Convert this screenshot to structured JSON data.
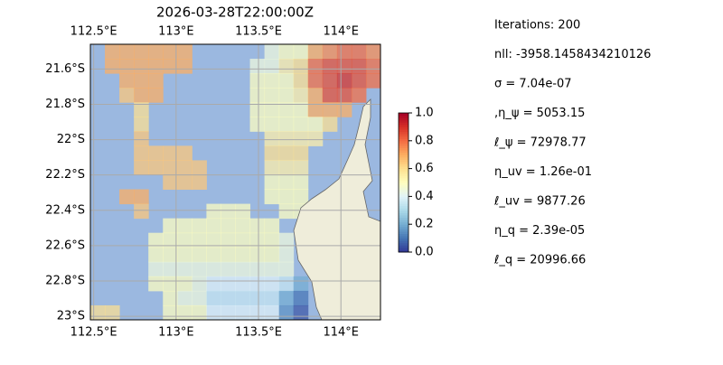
{
  "chart_data": {
    "type": "heatmap",
    "title": "2026-03-28T22:00:00Z",
    "xlim": [
      112.48,
      114.24
    ],
    "ylim": [
      -23.02,
      -21.46
    ],
    "xticks": [
      {
        "value": 112.5,
        "label": "112.5°E"
      },
      {
        "value": 113,
        "label": "113°E"
      },
      {
        "value": 113.5,
        "label": "113.5°E"
      },
      {
        "value": 114,
        "label": "114°E"
      }
    ],
    "yticks": [
      {
        "value": -21.6,
        "label": "21.6°S"
      },
      {
        "value": -21.8,
        "label": "21.8°S"
      },
      {
        "value": -22,
        "label": "22°S"
      },
      {
        "value": -22.2,
        "label": "22.2°S"
      },
      {
        "value": -22.4,
        "label": "22.4°S"
      },
      {
        "value": -22.6,
        "label": "22.6°S"
      },
      {
        "value": -22.8,
        "label": "22.8°S"
      },
      {
        "value": -23,
        "label": "23°S"
      }
    ],
    "grid": true,
    "colorbar": {
      "lim": [
        0,
        1
      ],
      "ticks": [
        {
          "value": 0,
          "label": "0.0"
        },
        {
          "value": 0.2,
          "label": "0.2"
        },
        {
          "value": 0.4,
          "label": "0.4"
        },
        {
          "value": 0.6,
          "label": "0.6"
        },
        {
          "value": 0.8,
          "label": "0.8"
        },
        {
          "value": 1,
          "label": "1.0"
        }
      ]
    },
    "colormap": [
      "#313695",
      "#4575b4",
      "#74add1",
      "#abd9e9",
      "#e0f3f8",
      "#ffffbf",
      "#fee090",
      "#fdae61",
      "#f46d43",
      "#d73027",
      "#a50026"
    ],
    "grid_values": [
      [
        null,
        0.7,
        0.7,
        0.7,
        0.7,
        0.7,
        0.7,
        null,
        null,
        null,
        null,
        null,
        0.45,
        0.5,
        0.5,
        0.7,
        0.75,
        0.8,
        0.8,
        0.75
      ],
      [
        null,
        0.7,
        0.7,
        0.7,
        0.7,
        0.7,
        0.7,
        null,
        null,
        null,
        null,
        0.45,
        0.45,
        0.55,
        0.6,
        0.8,
        0.85,
        0.85,
        0.85,
        0.8
      ],
      [
        null,
        null,
        0.7,
        0.7,
        0.7,
        null,
        null,
        null,
        null,
        null,
        null,
        0.5,
        0.5,
        0.5,
        0.6,
        0.8,
        0.85,
        0.9,
        0.85,
        0.8
      ],
      [
        null,
        null,
        0.65,
        0.7,
        0.7,
        null,
        null,
        null,
        null,
        null,
        null,
        0.5,
        0.5,
        0.5,
        0.55,
        0.7,
        0.85,
        0.85,
        0.8,
        null
      ],
      [
        null,
        null,
        null,
        0.6,
        null,
        null,
        null,
        null,
        null,
        null,
        null,
        0.5,
        0.5,
        0.5,
        0.5,
        0.7,
        0.7,
        0.7,
        null,
        null
      ],
      [
        null,
        null,
        null,
        0.6,
        null,
        null,
        null,
        null,
        null,
        null,
        null,
        0.5,
        0.5,
        0.5,
        0.5,
        0.5,
        0.6,
        null,
        null,
        null
      ],
      [
        null,
        null,
        null,
        0.65,
        null,
        null,
        null,
        null,
        null,
        null,
        null,
        null,
        0.55,
        0.55,
        0.55,
        0.55,
        null,
        null,
        null,
        null
      ],
      [
        null,
        null,
        null,
        0.65,
        0.65,
        0.65,
        0.65,
        null,
        null,
        null,
        null,
        null,
        0.6,
        0.6,
        0.6,
        null,
        null,
        null,
        null,
        null
      ],
      [
        null,
        null,
        null,
        0.65,
        0.65,
        0.65,
        0.65,
        0.65,
        null,
        null,
        null,
        null,
        0.55,
        0.55,
        0.55,
        null,
        null,
        null,
        null,
        null
      ],
      [
        null,
        null,
        null,
        null,
        null,
        0.65,
        0.65,
        0.65,
        null,
        null,
        null,
        null,
        0.5,
        0.5,
        0.5,
        null,
        null,
        null,
        null,
        null
      ],
      [
        null,
        null,
        0.7,
        0.7,
        null,
        null,
        null,
        null,
        null,
        null,
        null,
        null,
        0.5,
        0.5,
        0.5,
        null,
        null,
        null,
        null,
        null
      ],
      [
        null,
        null,
        null,
        0.65,
        null,
        null,
        null,
        null,
        0.5,
        0.5,
        0.5,
        null,
        null,
        0.5,
        0.5,
        null,
        null,
        null,
        null,
        null
      ],
      [
        null,
        null,
        null,
        null,
        null,
        0.5,
        0.5,
        0.5,
        0.5,
        0.5,
        0.5,
        0.5,
        0.5,
        null,
        null,
        null,
        null,
        null,
        null,
        null
      ],
      [
        null,
        null,
        null,
        null,
        0.5,
        0.5,
        0.5,
        0.5,
        0.5,
        0.5,
        0.5,
        0.5,
        0.5,
        0.45,
        null,
        null,
        null,
        null,
        null,
        null
      ],
      [
        null,
        null,
        null,
        null,
        0.5,
        0.5,
        0.5,
        0.5,
        0.5,
        0.5,
        0.5,
        0.5,
        0.5,
        0.45,
        null,
        null,
        null,
        null,
        null,
        null
      ],
      [
        null,
        null,
        null,
        null,
        0.45,
        0.45,
        0.45,
        0.45,
        0.45,
        0.45,
        0.45,
        0.45,
        0.45,
        0.45,
        null,
        null,
        null,
        null,
        null,
        null
      ],
      [
        null,
        null,
        null,
        null,
        0.5,
        0.5,
        0.5,
        0.45,
        0.4,
        0.4,
        0.4,
        0.4,
        0.4,
        0.35,
        0.2,
        null,
        null,
        null,
        null,
        null
      ],
      [
        null,
        null,
        null,
        null,
        null,
        0.5,
        0.45,
        0.45,
        0.35,
        0.35,
        0.35,
        0.35,
        0.35,
        0.2,
        0.1,
        null,
        null,
        null,
        null,
        null
      ],
      [
        0.6,
        0.6,
        null,
        null,
        null,
        0.5,
        0.5,
        0.5,
        0.4,
        0.4,
        0.4,
        0.4,
        0.4,
        0.15,
        0.05,
        null,
        null,
        null,
        null,
        null
      ]
    ]
  },
  "info": [
    "Iterations: 200",
    "nll: -3958.1458434210126",
    "σ = 7.04e-07",
    ",η_ψ = 5053.15",
    "ℓ_ψ = 72978.77",
    "η_uv = 1.26e-01",
    "ℓ_uv = 9877.26",
    "η_q = 2.39e-05",
    "ℓ_q = 20996.66"
  ]
}
